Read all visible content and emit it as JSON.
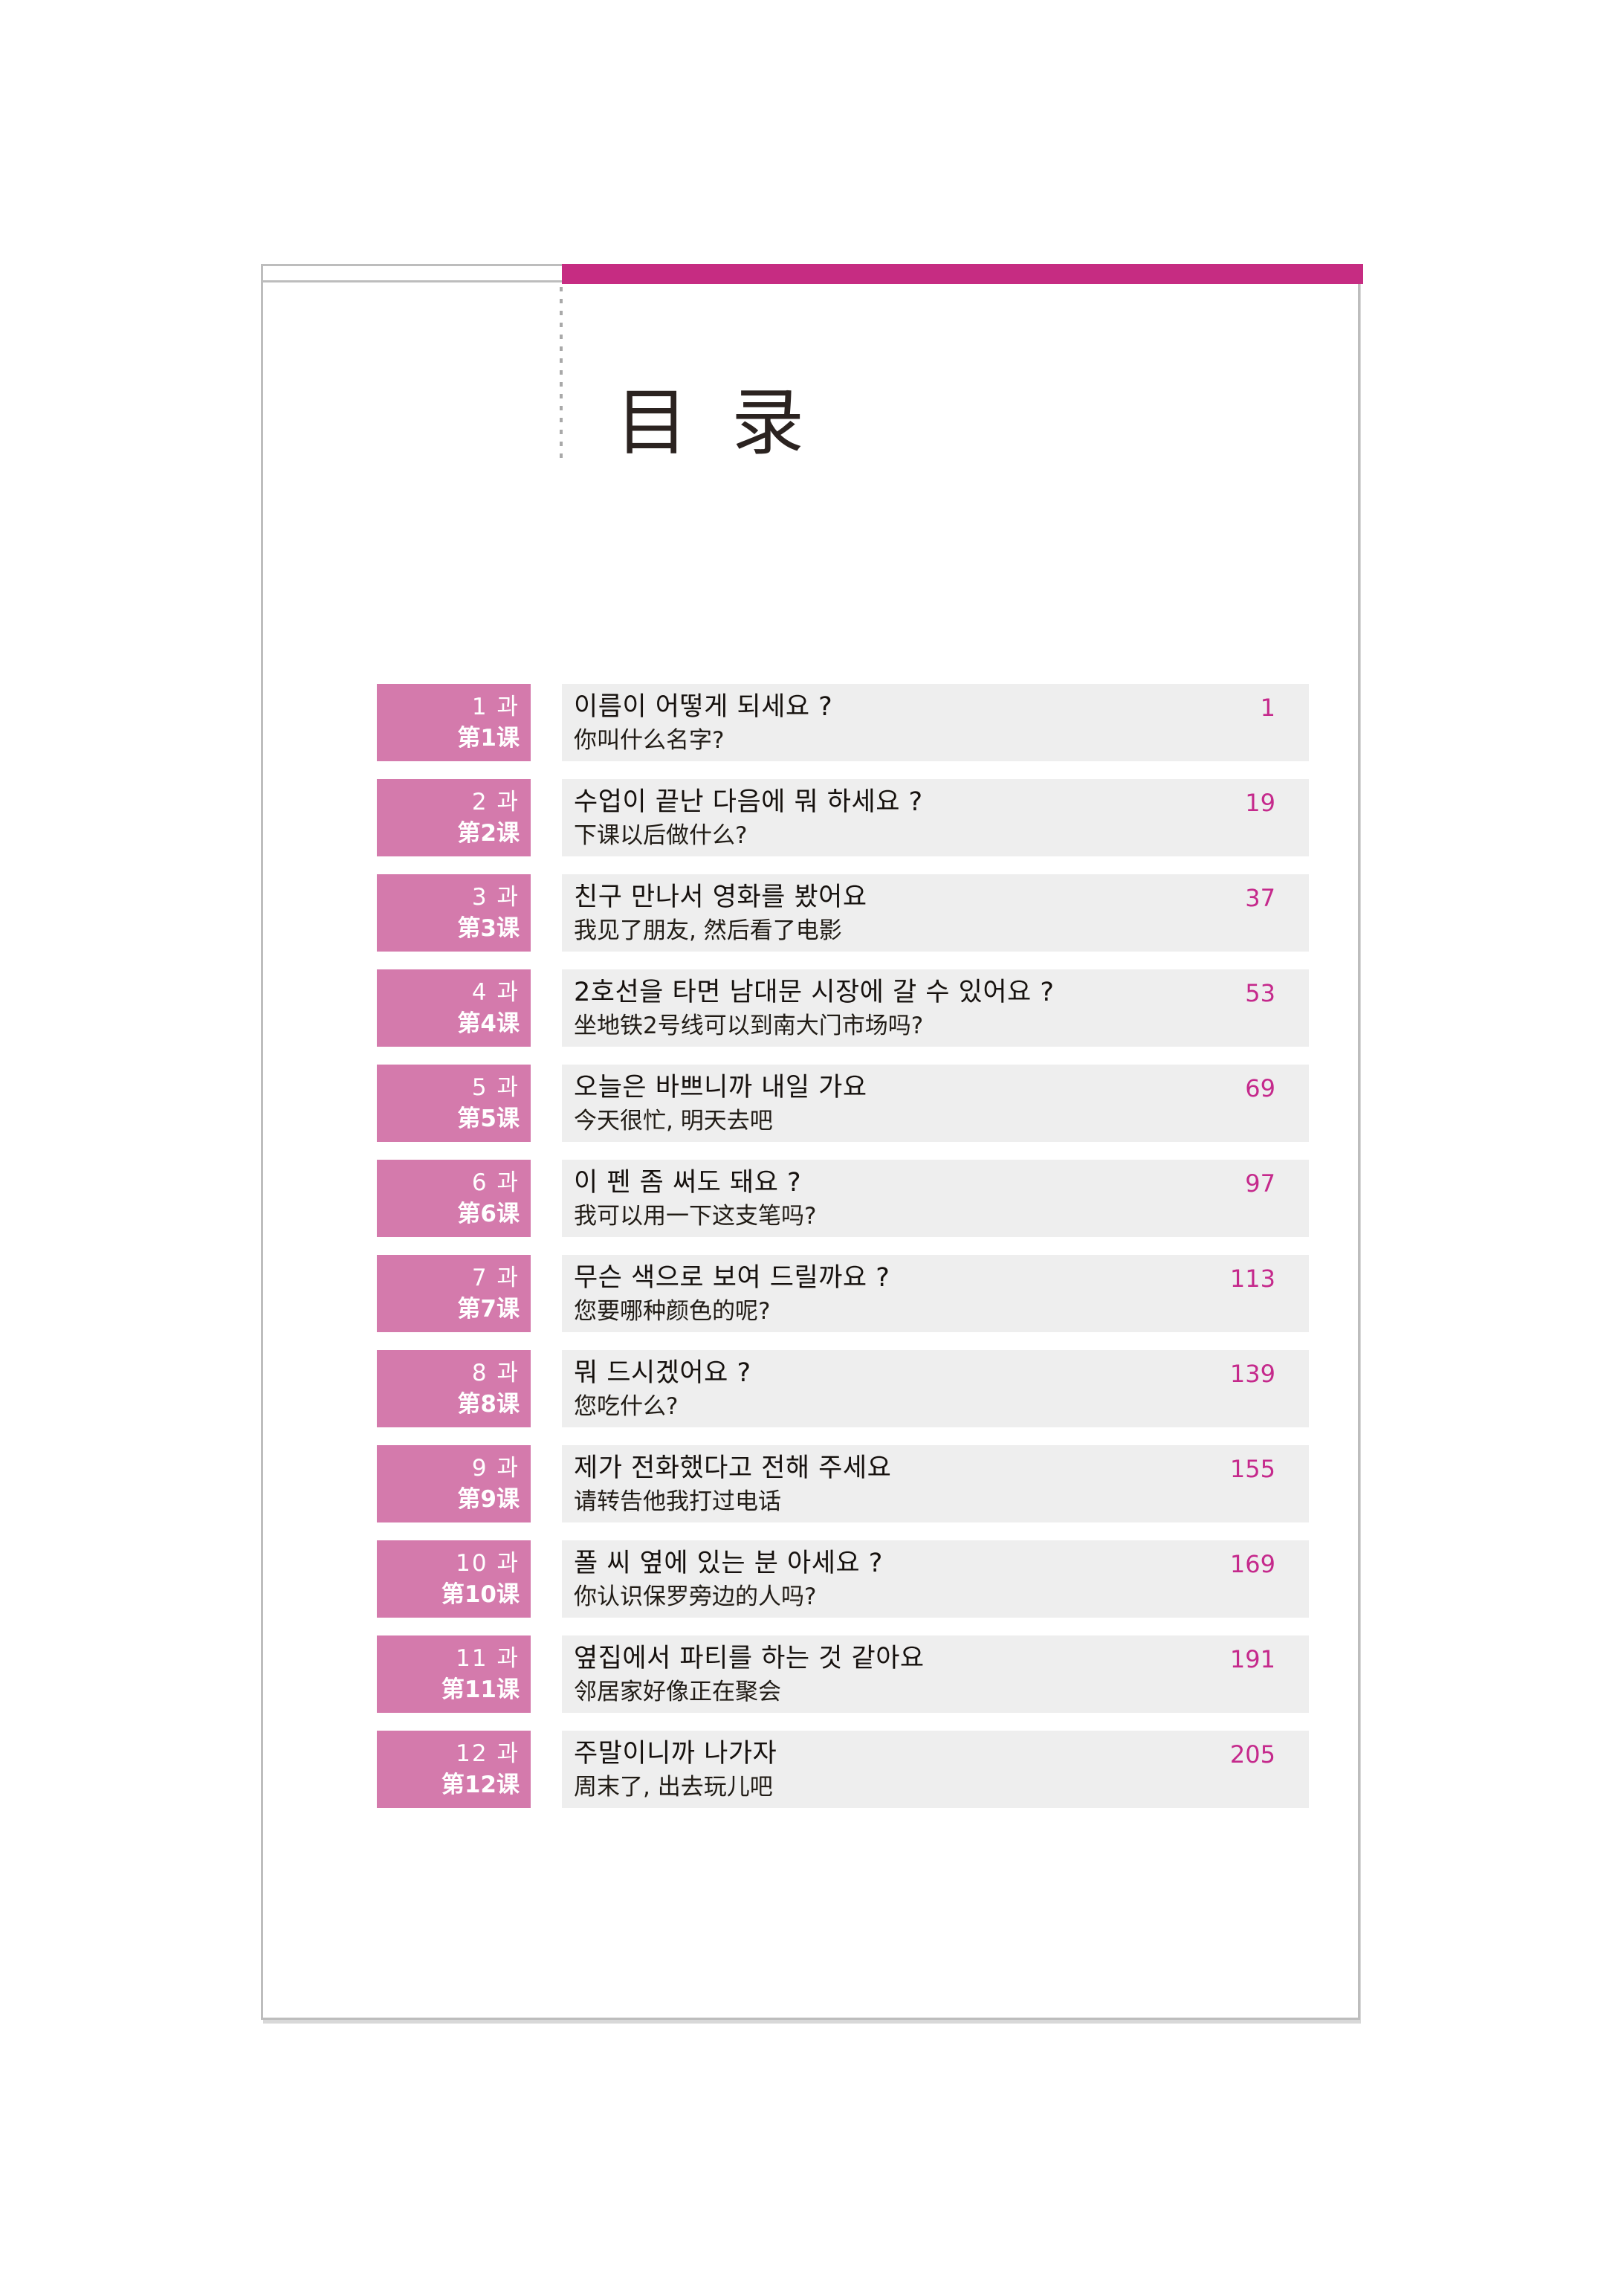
{
  "document": {
    "title": "目 录",
    "title_char_1": "目",
    "title_char_2": "录"
  },
  "toc": {
    "items": [
      {
        "lesson_ko": "1 과",
        "lesson_zh": "第1课",
        "title_ko": "이름이 어떻게 되세요 ?",
        "title_zh": "你叫什么名字?",
        "page": "1"
      },
      {
        "lesson_ko": "2 과",
        "lesson_zh": "第2课",
        "title_ko": "수업이 끝난 다음에 뭐 하세요 ?",
        "title_zh": "下课以后做什么?",
        "page": "19"
      },
      {
        "lesson_ko": "3 과",
        "lesson_zh": "第3课",
        "title_ko": "친구 만나서 영화를 봤어요",
        "title_zh": "我见了朋友, 然后看了电影",
        "page": "37"
      },
      {
        "lesson_ko": "4 과",
        "lesson_zh": "第4课",
        "title_ko": "2호선을 타면 남대문 시장에 갈 수 있어요 ?",
        "title_zh": "坐地铁2号线可以到南大门市场吗?",
        "page": "53"
      },
      {
        "lesson_ko": "5 과",
        "lesson_zh": "第5课",
        "title_ko": "오늘은 바쁘니까 내일 가요",
        "title_zh": "今天很忙, 明天去吧",
        "page": "69"
      },
      {
        "lesson_ko": "6 과",
        "lesson_zh": "第6课",
        "title_ko": "이 펜 좀 써도 돼요 ?",
        "title_zh": "我可以用一下这支笔吗?",
        "page": "97"
      },
      {
        "lesson_ko": "7 과",
        "lesson_zh": "第7课",
        "title_ko": "무슨 색으로 보여 드릴까요 ?",
        "title_zh": "您要哪种颜色的呢?",
        "page": "113"
      },
      {
        "lesson_ko": "8 과",
        "lesson_zh": "第8课",
        "title_ko": "뭐 드시겠어요 ?",
        "title_zh": "您吃什么?",
        "page": "139"
      },
      {
        "lesson_ko": "9 과",
        "lesson_zh": "第9课",
        "title_ko": "제가 전화했다고 전해 주세요",
        "title_zh": "请转告他我打过电话",
        "page": "155"
      },
      {
        "lesson_ko": "10 과",
        "lesson_zh": "第10课",
        "title_ko": "폴 씨 옆에 있는 분 아세요 ?",
        "title_zh": "你认识保罗旁边的人吗?",
        "page": "169"
      },
      {
        "lesson_ko": "11 과",
        "lesson_zh": "第11课",
        "title_ko": "옆집에서 파티를 하는 것 같아요",
        "title_zh": "邻居家好像正在聚会",
        "page": "191"
      },
      {
        "lesson_ko": "12 과",
        "lesson_zh": "第12课",
        "title_ko": "주말이니까 나가자",
        "title_zh": "周末了, 出去玩儿吧",
        "page": "205"
      }
    ]
  },
  "colors": {
    "accent_bar": "#c62c82",
    "lesson_label_bg": "#d47aac",
    "entry_bg": "#eeeeee",
    "page_number": "#c5298c",
    "title_text": "#2b2320",
    "page_border": "#bdbdbd"
  }
}
